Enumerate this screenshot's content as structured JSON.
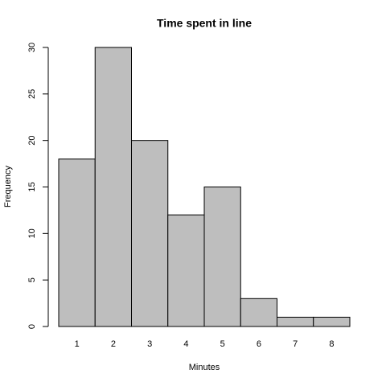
{
  "chart_data": {
    "type": "bar",
    "title": "Time spent in line",
    "x_label": "Minutes",
    "y_label": "Frequency",
    "categories": [
      "1",
      "2",
      "3",
      "4",
      "5",
      "6",
      "7",
      "8"
    ],
    "values": [
      18,
      30,
      20,
      12,
      15,
      3,
      1,
      1
    ],
    "color": "#bebebe",
    "ylim": [
      0,
      30
    ],
    "yticks": [
      0,
      5,
      10,
      15,
      20,
      25,
      30
    ]
  }
}
